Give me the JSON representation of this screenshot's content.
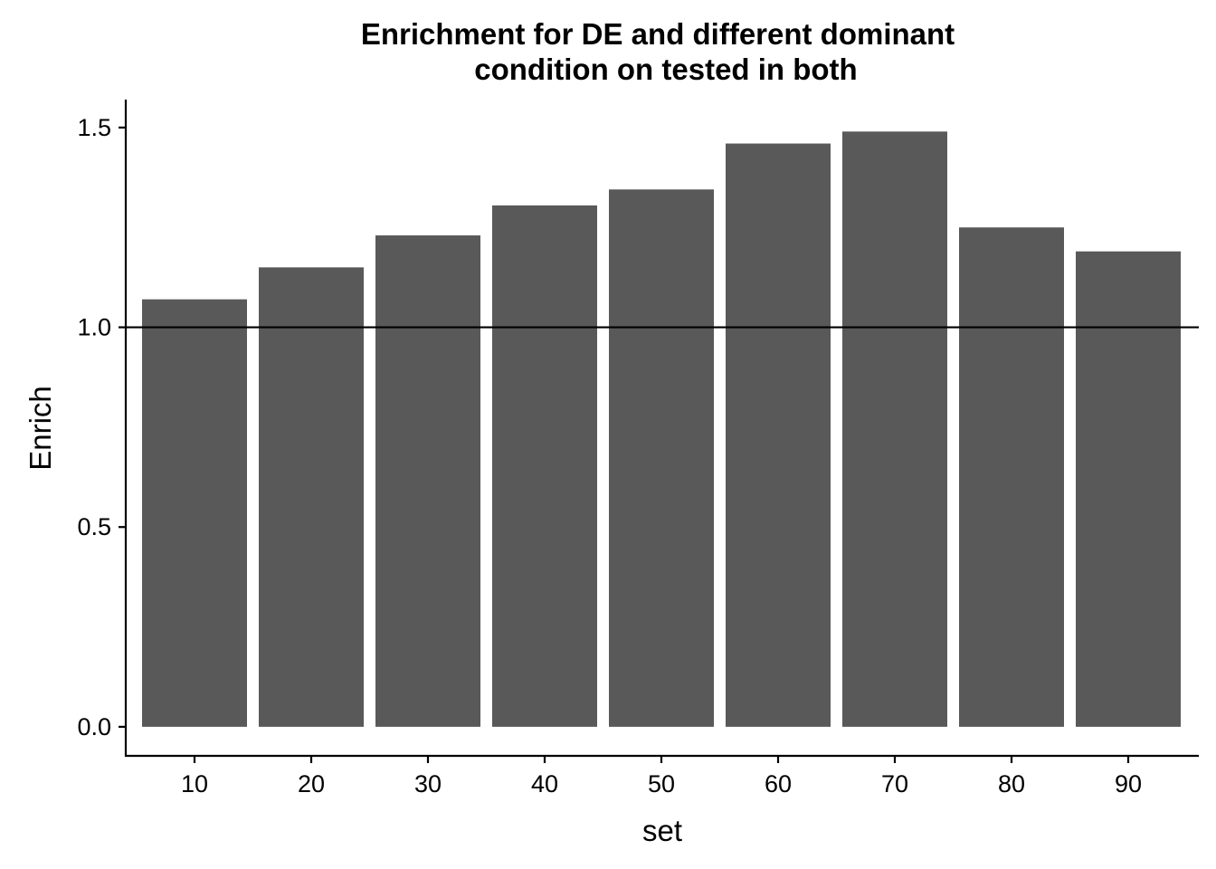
{
  "chart_data": {
    "type": "bar",
    "title": "Enrichment for DE and different dominant condition on tested in both",
    "title_lines": [
      "Enrichment for DE and different dominant",
      "condition on tested in both"
    ],
    "xlabel": "set",
    "ylabel": "Enrich",
    "categories": [
      "10",
      "20",
      "30",
      "40",
      "50",
      "60",
      "70",
      "80",
      "90"
    ],
    "values": [
      1.07,
      1.15,
      1.23,
      1.305,
      1.345,
      1.46,
      1.49,
      1.25,
      1.19
    ],
    "ylim": [
      -0.075,
      1.57
    ],
    "yticks": [
      "0.0",
      "0.5",
      "1.0",
      "1.5"
    ],
    "reference_line_y": 1.0,
    "bar_color": "#595959",
    "grid": false,
    "legend": "none"
  }
}
